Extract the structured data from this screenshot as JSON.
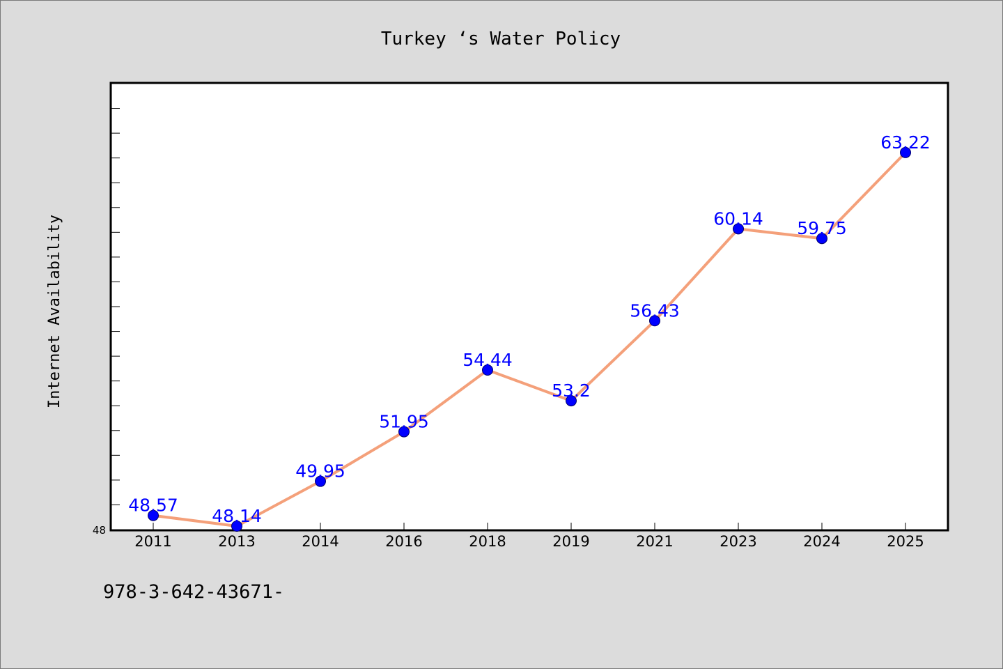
{
  "chart_data": {
    "type": "line",
    "title": "Turkey ‘s Water Policy",
    "ylabel": "Internet Availability",
    "xlabel": "",
    "categories": [
      "2011",
      "2013",
      "2014",
      "2016",
      "2018",
      "2019",
      "2021",
      "2023",
      "2024",
      "2025"
    ],
    "series": [
      {
        "values": [
          48.57,
          48.14,
          49.95,
          51.95,
          54.44,
          53.2,
          56.43,
          60.14,
          59.75,
          63.22
        ],
        "labels": [
          "48.57",
          "48.14",
          "49.95",
          "51.95",
          "54.44",
          "53.2",
          "56.43",
          "60.14",
          "59.75",
          "63.22"
        ]
      }
    ],
    "ylim": [
      48,
      66
    ],
    "y_min_label": "48",
    "grid": false,
    "line_color": "#f4a07a",
    "marker_color": "#0000ff",
    "label_color": "#0000ff"
  },
  "footnote": "978-3-642-43671-"
}
